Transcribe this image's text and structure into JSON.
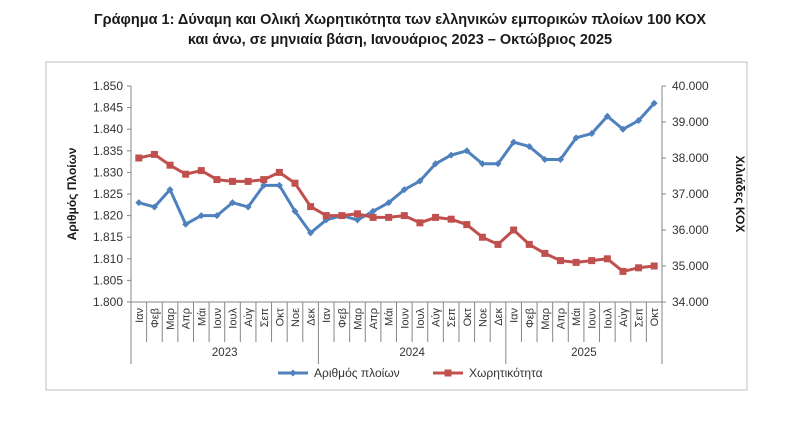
{
  "title_line1": "Γράφημα 1: Δύναμη και Ολική Χωρητικότητα των ελληνικών εμπορικών πλοίων 100 ΚΟΧ",
  "title_line2": "και άνω, σε μηνιαία βάση, Ιανουάριος 2023 – Οκτώβριος 2025",
  "chart_data": {
    "type": "line",
    "title": "Γράφημα 1: Δύναμη και Ολική Χωρητικότητα των ελληνικών εμπορικών πλοίων 100 ΚΟΧ και άνω, σε μηνιαία βάση, Ιανουάριος 2023 – Οκτώβριος 2025",
    "categories": [
      "Ιαν",
      "Φεβ",
      "Μαρ",
      "Απρ",
      "Μάι",
      "Ιουν",
      "Ιουλ",
      "Αύγ",
      "Σεπ",
      "Οκτ",
      "Νοε",
      "Δεκ",
      "Ιαν",
      "Φεβ",
      "Μαρ",
      "Απρ",
      "Μάι",
      "Ιουν",
      "Ιουλ",
      "Αύγ",
      "Σεπ",
      "Οκτ",
      "Νοε",
      "Δεκ",
      "Ιαν",
      "Φεβ",
      "Μαρ",
      "Απρ",
      "Μάι",
      "Ιουν",
      "Ιουλ",
      "Αύγ",
      "Σεπ",
      "Οκτ"
    ],
    "year_groups": [
      {
        "label": "2023",
        "start": 0,
        "count": 12
      },
      {
        "label": "2024",
        "start": 12,
        "count": 12
      },
      {
        "label": "2025",
        "start": 24,
        "count": 10
      }
    ],
    "ylabel": "Αριθμός Πλοίων",
    "y2label": "Χιλιάδες ΚΟΧ",
    "ylim": [
      1800,
      1850
    ],
    "y2lim": [
      34000,
      40000
    ],
    "yticks": [
      "1.800",
      "1.805",
      "1.810",
      "1.815",
      "1.820",
      "1.825",
      "1.830",
      "1.835",
      "1.840",
      "1.845",
      "1.850"
    ],
    "y2ticks": [
      "34.000",
      "35.000",
      "36.000",
      "37.000",
      "38.000",
      "39.000",
      "40.000"
    ],
    "series": [
      {
        "name": "Αριθμός πλοίων",
        "axis": "left",
        "color": "#4f81bd",
        "marker": "diamond",
        "values": [
          1823,
          1822,
          1826,
          1818,
          1820,
          1820,
          1823,
          1822,
          1827,
          1827,
          1821,
          1816,
          1819,
          1820,
          1819,
          1821,
          1823,
          1826,
          1828,
          1832,
          1834,
          1835,
          1832,
          1832,
          1837,
          1836,
          1833,
          1833,
          1838,
          1839,
          1843,
          1840,
          1842,
          1846
        ]
      },
      {
        "name": "Χωρητικότητα",
        "axis": "right",
        "color": "#c0504d",
        "marker": "square",
        "values": [
          38000,
          38100,
          37800,
          37550,
          37650,
          37400,
          37350,
          37350,
          37400,
          37600,
          37300,
          36650,
          36400,
          36400,
          36450,
          36350,
          36350,
          36400,
          36200,
          36350,
          36300,
          36150,
          35800,
          35600,
          36000,
          35600,
          35350,
          35150,
          35100,
          35150,
          35200,
          34850,
          34950,
          35000
        ]
      }
    ],
    "legend_position": "bottom",
    "grid": false
  }
}
